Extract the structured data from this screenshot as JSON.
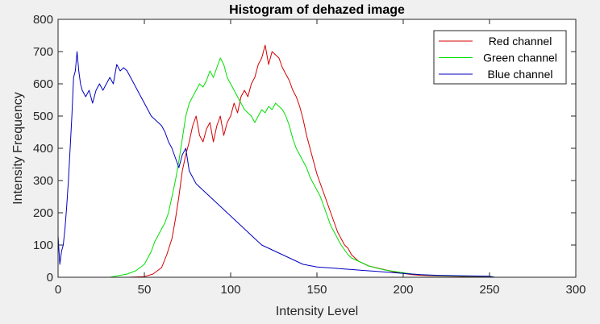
{
  "chart_data": {
    "type": "line",
    "title": "Histogram of dehazed image",
    "xlabel": "Intensity Level",
    "ylabel": "Intensity Frequency",
    "xlim": [
      0,
      300
    ],
    "ylim": [
      0,
      800
    ],
    "xticks": [
      0,
      50,
      100,
      150,
      200,
      250,
      300
    ],
    "yticks": [
      0,
      100,
      200,
      300,
      400,
      500,
      600,
      700,
      800
    ],
    "grid": false,
    "legend_position": "top-right",
    "series": [
      {
        "name": "Red channel",
        "color": "#d40000",
        "points": [
          [
            0,
            0
          ],
          [
            40,
            0
          ],
          [
            50,
            2
          ],
          [
            55,
            10
          ],
          [
            60,
            30
          ],
          [
            63,
            70
          ],
          [
            66,
            120
          ],
          [
            68,
            180
          ],
          [
            70,
            250
          ],
          [
            72,
            330
          ],
          [
            74,
            380
          ],
          [
            76,
            420
          ],
          [
            78,
            470
          ],
          [
            80,
            500
          ],
          [
            82,
            440
          ],
          [
            84,
            420
          ],
          [
            86,
            460
          ],
          [
            88,
            480
          ],
          [
            90,
            420
          ],
          [
            92,
            470
          ],
          [
            94,
            500
          ],
          [
            96,
            440
          ],
          [
            98,
            480
          ],
          [
            100,
            500
          ],
          [
            102,
            540
          ],
          [
            104,
            510
          ],
          [
            106,
            560
          ],
          [
            108,
            580
          ],
          [
            110,
            560
          ],
          [
            112,
            600
          ],
          [
            114,
            620
          ],
          [
            116,
            660
          ],
          [
            118,
            680
          ],
          [
            120,
            720
          ],
          [
            122,
            660
          ],
          [
            124,
            700
          ],
          [
            126,
            690
          ],
          [
            128,
            680
          ],
          [
            130,
            650
          ],
          [
            132,
            630
          ],
          [
            134,
            610
          ],
          [
            136,
            580
          ],
          [
            138,
            560
          ],
          [
            140,
            530
          ],
          [
            142,
            490
          ],
          [
            144,
            440
          ],
          [
            146,
            400
          ],
          [
            148,
            360
          ],
          [
            150,
            320
          ],
          [
            152,
            290
          ],
          [
            154,
            260
          ],
          [
            156,
            230
          ],
          [
            158,
            200
          ],
          [
            160,
            170
          ],
          [
            162,
            140
          ],
          [
            164,
            120
          ],
          [
            166,
            100
          ],
          [
            168,
            90
          ],
          [
            170,
            70
          ],
          [
            172,
            60
          ],
          [
            174,
            50
          ],
          [
            176,
            45
          ],
          [
            178,
            40
          ],
          [
            180,
            35
          ],
          [
            184,
            30
          ],
          [
            188,
            25
          ],
          [
            192,
            20
          ],
          [
            196,
            15
          ],
          [
            200,
            12
          ],
          [
            205,
            8
          ],
          [
            210,
            6
          ],
          [
            220,
            4
          ],
          [
            230,
            3
          ],
          [
            240,
            2
          ],
          [
            250,
            2
          ],
          [
            253,
            0
          ],
          [
            300,
            0
          ]
        ]
      },
      {
        "name": "Green channel",
        "color": "#00e000",
        "points": [
          [
            0,
            0
          ],
          [
            30,
            0
          ],
          [
            35,
            5
          ],
          [
            40,
            10
          ],
          [
            45,
            20
          ],
          [
            50,
            40
          ],
          [
            52,
            60
          ],
          [
            54,
            80
          ],
          [
            56,
            110
          ],
          [
            58,
            130
          ],
          [
            60,
            150
          ],
          [
            62,
            170
          ],
          [
            64,
            200
          ],
          [
            66,
            250
          ],
          [
            68,
            300
          ],
          [
            70,
            360
          ],
          [
            72,
            430
          ],
          [
            74,
            500
          ],
          [
            76,
            540
          ],
          [
            78,
            560
          ],
          [
            80,
            580
          ],
          [
            82,
            600
          ],
          [
            84,
            590
          ],
          [
            86,
            610
          ],
          [
            88,
            640
          ],
          [
            90,
            620
          ],
          [
            92,
            650
          ],
          [
            94,
            680
          ],
          [
            96,
            660
          ],
          [
            98,
            620
          ],
          [
            100,
            600
          ],
          [
            102,
            580
          ],
          [
            104,
            560
          ],
          [
            106,
            540
          ],
          [
            108,
            520
          ],
          [
            110,
            510
          ],
          [
            112,
            500
          ],
          [
            114,
            480
          ],
          [
            116,
            500
          ],
          [
            118,
            520
          ],
          [
            120,
            510
          ],
          [
            122,
            530
          ],
          [
            124,
            520
          ],
          [
            126,
            540
          ],
          [
            128,
            530
          ],
          [
            130,
            520
          ],
          [
            132,
            500
          ],
          [
            134,
            470
          ],
          [
            136,
            430
          ],
          [
            138,
            400
          ],
          [
            140,
            380
          ],
          [
            142,
            360
          ],
          [
            144,
            340
          ],
          [
            146,
            310
          ],
          [
            148,
            290
          ],
          [
            150,
            270
          ],
          [
            152,
            250
          ],
          [
            154,
            220
          ],
          [
            156,
            190
          ],
          [
            158,
            160
          ],
          [
            160,
            140
          ],
          [
            162,
            120
          ],
          [
            164,
            100
          ],
          [
            166,
            85
          ],
          [
            168,
            70
          ],
          [
            170,
            60
          ],
          [
            172,
            55
          ],
          [
            174,
            50
          ],
          [
            176,
            45
          ],
          [
            178,
            40
          ],
          [
            180,
            35
          ],
          [
            185,
            28
          ],
          [
            190,
            22
          ],
          [
            195,
            18
          ],
          [
            200,
            14
          ],
          [
            205,
            10
          ],
          [
            210,
            8
          ],
          [
            220,
            5
          ],
          [
            230,
            4
          ],
          [
            240,
            3
          ],
          [
            250,
            3
          ],
          [
            253,
            0
          ],
          [
            300,
            0
          ]
        ]
      },
      {
        "name": "Blue channel",
        "color": "#0000c0",
        "points": [
          [
            0,
            130
          ],
          [
            1,
            40
          ],
          [
            2,
            80
          ],
          [
            3,
            100
          ],
          [
            4,
            150
          ],
          [
            5,
            220
          ],
          [
            6,
            300
          ],
          [
            7,
            400
          ],
          [
            8,
            500
          ],
          [
            9,
            620
          ],
          [
            10,
            640
          ],
          [
            11,
            700
          ],
          [
            12,
            640
          ],
          [
            13,
            600
          ],
          [
            14,
            580
          ],
          [
            16,
            560
          ],
          [
            18,
            580
          ],
          [
            20,
            540
          ],
          [
            22,
            580
          ],
          [
            24,
            600
          ],
          [
            26,
            580
          ],
          [
            28,
            600
          ],
          [
            30,
            620
          ],
          [
            32,
            600
          ],
          [
            34,
            660
          ],
          [
            36,
            640
          ],
          [
            38,
            650
          ],
          [
            40,
            640
          ],
          [
            42,
            620
          ],
          [
            44,
            600
          ],
          [
            46,
            580
          ],
          [
            48,
            560
          ],
          [
            50,
            540
          ],
          [
            52,
            520
          ],
          [
            54,
            500
          ],
          [
            56,
            490
          ],
          [
            58,
            480
          ],
          [
            60,
            470
          ],
          [
            62,
            450
          ],
          [
            64,
            420
          ],
          [
            66,
            400
          ],
          [
            68,
            370
          ],
          [
            70,
            340
          ],
          [
            72,
            380
          ],
          [
            74,
            400
          ],
          [
            76,
            330
          ],
          [
            78,
            310
          ],
          [
            80,
            290
          ],
          [
            82,
            280
          ],
          [
            84,
            270
          ],
          [
            86,
            260
          ],
          [
            88,
            250
          ],
          [
            90,
            240
          ],
          [
            92,
            230
          ],
          [
            94,
            220
          ],
          [
            96,
            210
          ],
          [
            98,
            200
          ],
          [
            100,
            190
          ],
          [
            102,
            180
          ],
          [
            104,
            170
          ],
          [
            106,
            160
          ],
          [
            108,
            150
          ],
          [
            110,
            140
          ],
          [
            112,
            130
          ],
          [
            114,
            120
          ],
          [
            116,
            110
          ],
          [
            118,
            100
          ],
          [
            120,
            95
          ],
          [
            122,
            90
          ],
          [
            124,
            85
          ],
          [
            126,
            80
          ],
          [
            128,
            75
          ],
          [
            130,
            70
          ],
          [
            132,
            65
          ],
          [
            134,
            60
          ],
          [
            136,
            55
          ],
          [
            138,
            50
          ],
          [
            140,
            45
          ],
          [
            142,
            40
          ],
          [
            144,
            38
          ],
          [
            146,
            36
          ],
          [
            148,
            34
          ],
          [
            150,
            32
          ],
          [
            155,
            30
          ],
          [
            160,
            28
          ],
          [
            165,
            26
          ],
          [
            170,
            24
          ],
          [
            175,
            22
          ],
          [
            180,
            20
          ],
          [
            185,
            18
          ],
          [
            190,
            16
          ],
          [
            195,
            14
          ],
          [
            200,
            12
          ],
          [
            205,
            10
          ],
          [
            210,
            8
          ],
          [
            220,
            6
          ],
          [
            230,
            5
          ],
          [
            240,
            4
          ],
          [
            250,
            3
          ],
          [
            253,
            0
          ],
          [
            300,
            0
          ]
        ]
      }
    ]
  }
}
